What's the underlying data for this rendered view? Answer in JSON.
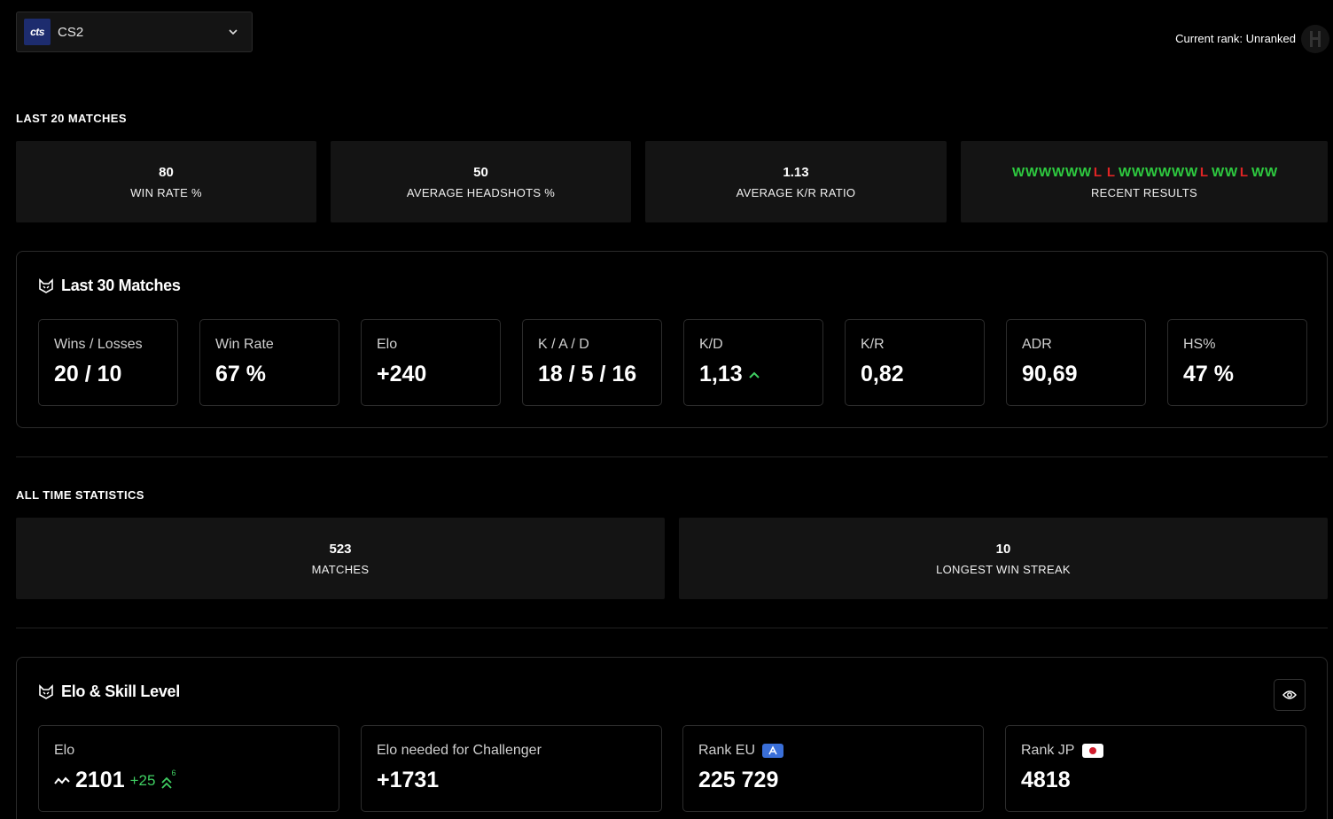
{
  "game_select": {
    "logo_text": "cts",
    "name": "CS2"
  },
  "rank_top": {
    "label": "Current rank: Unranked"
  },
  "last20": {
    "title": "LAST 20 MATCHES",
    "win_rate": {
      "value": "80",
      "label": "WIN RATE %"
    },
    "headshots": {
      "value": "50",
      "label": "AVERAGE HEADSHOTS %"
    },
    "kr_ratio": {
      "value": "1.13",
      "label": "AVERAGE K/R RATIO"
    },
    "recent": {
      "label": "RECENT RESULTS",
      "results": [
        "W",
        "W",
        "W",
        "W",
        "W",
        "W",
        "L",
        "L",
        "W",
        "W",
        "W",
        "W",
        "W",
        "W",
        "L",
        "W",
        "W",
        "L",
        "W",
        "W"
      ]
    }
  },
  "last30": {
    "title": "Last 30 Matches",
    "cards": [
      {
        "label": "Wins / Losses",
        "value": "20 / 10"
      },
      {
        "label": "Win Rate",
        "value": "67 %"
      },
      {
        "label": "Elo",
        "value": "+240"
      },
      {
        "label": "K / A / D",
        "value": "18 / 5 / 16"
      },
      {
        "label": "K/D",
        "value": "1,13"
      },
      {
        "label": "K/R",
        "value": "0,82"
      },
      {
        "label": "ADR",
        "value": "90,69"
      },
      {
        "label": "HS%",
        "value": "47 %"
      }
    ]
  },
  "alltime": {
    "title": "ALL TIME STATISTICS",
    "matches": {
      "value": "523",
      "label": "MATCHES"
    },
    "streak": {
      "value": "10",
      "label": "LONGEST WIN STREAK"
    }
  },
  "elo_panel": {
    "title": "Elo & Skill Level",
    "elo": {
      "label": "Elo",
      "value": "2101",
      "delta": "+25",
      "level": "6"
    },
    "challenger": {
      "label": "Elo needed for Challenger",
      "value": "+1731"
    },
    "rank_eu": {
      "label": "Rank EU",
      "value": "225 729"
    },
    "rank_jp": {
      "label": "Rank JP",
      "value": "4818"
    }
  },
  "colors": {
    "win": "#2ecc40",
    "loss": "#e02424",
    "up": "#3fcf62",
    "card_bg": "#141414"
  }
}
